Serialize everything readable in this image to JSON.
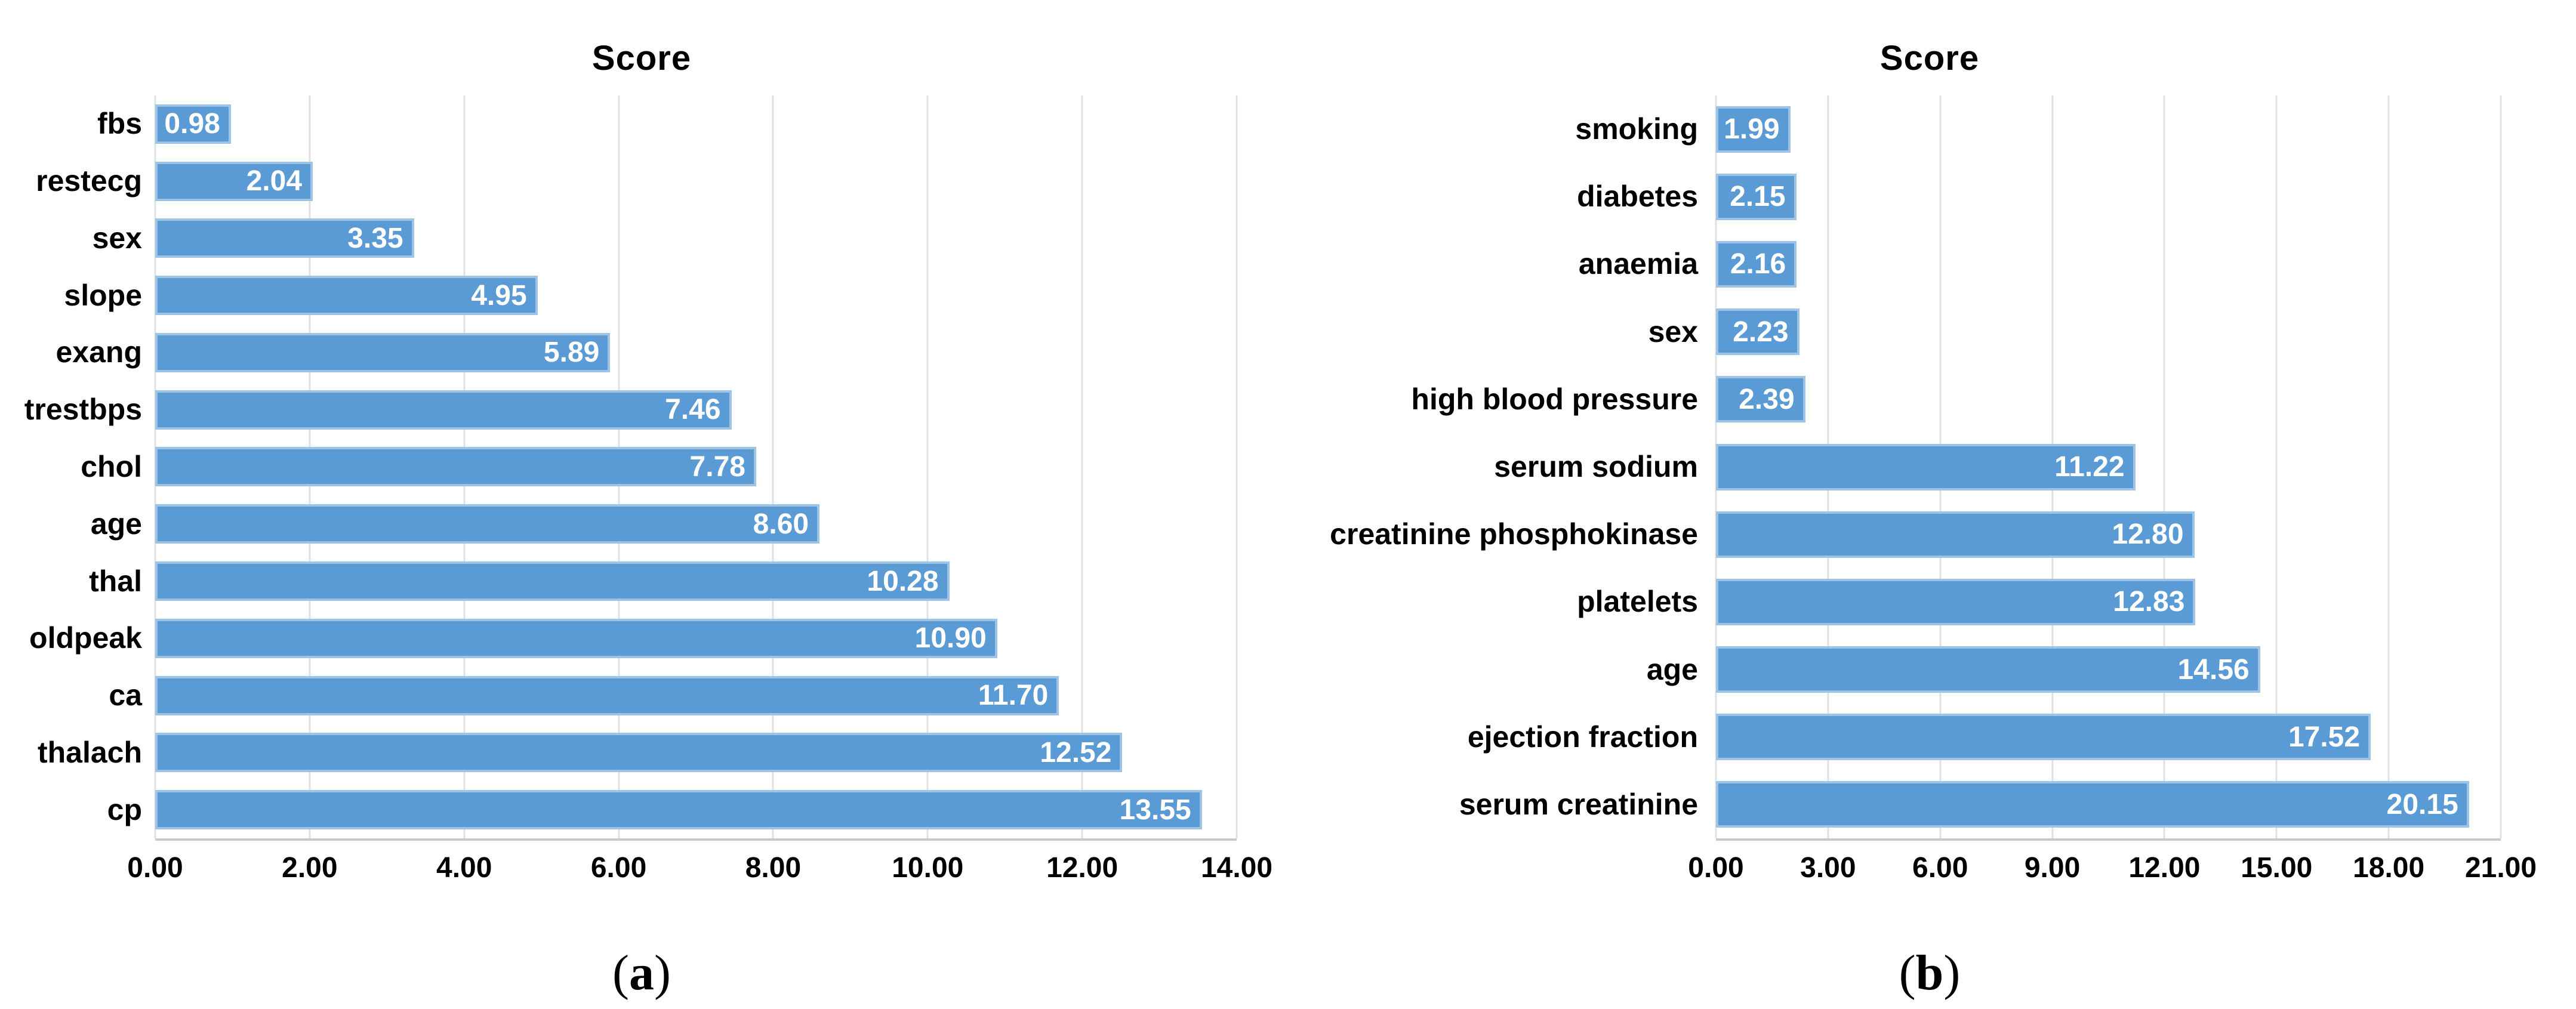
{
  "figure": {
    "captions": [
      {
        "open": "(",
        "letter": "a",
        "close": ")"
      },
      {
        "open": "(",
        "letter": "b",
        "close": ")"
      }
    ]
  },
  "chart_data": [
    {
      "type": "bar",
      "orientation": "horizontal",
      "title": "Score",
      "caption": "(a)",
      "categories": [
        "fbs",
        "restecg",
        "sex",
        "slope",
        "exang",
        "trestbps",
        "chol",
        "age",
        "thal",
        "oldpeak",
        "ca",
        "thalach",
        "cp"
      ],
      "values": [
        0.98,
        2.04,
        3.35,
        4.95,
        5.89,
        7.46,
        7.78,
        8.6,
        10.28,
        10.9,
        11.7,
        12.52,
        13.55
      ],
      "value_labels": [
        "0.98",
        "2.04",
        "3.35",
        "4.95",
        "5.89",
        "7.46",
        "7.78",
        "8.60",
        "10.28",
        "10.90",
        "11.70",
        "12.52",
        "13.55"
      ],
      "xlim": [
        0,
        14
      ],
      "xticks": [
        "0.00",
        "2.00",
        "4.00",
        "6.00",
        "8.00",
        "10.00",
        "12.00",
        "14.00"
      ],
      "xlabel": "",
      "ylabel": "",
      "grid": true,
      "legend": null,
      "bar_color": "#5b9bd5",
      "bar_border_color": "#9dc3e6",
      "value_label_color": "#ffffff"
    },
    {
      "type": "bar",
      "orientation": "horizontal",
      "title": "Score",
      "caption": "(b)",
      "categories": [
        "smoking",
        "diabetes",
        "anaemia",
        "sex",
        "high blood pressure",
        "serum sodium",
        "creatinine phosphokinase",
        "platelets",
        "age",
        "ejection fraction",
        "serum creatinine"
      ],
      "values": [
        1.99,
        2.15,
        2.16,
        2.23,
        2.39,
        11.22,
        12.8,
        12.83,
        14.56,
        17.52,
        20.15
      ],
      "value_labels": [
        "1.99",
        "2.15",
        "2.16",
        "2.23",
        "2.39",
        "11.22",
        "12.80",
        "12.83",
        "14.56",
        "17.52",
        "20.15"
      ],
      "xlim": [
        0,
        21
      ],
      "xticks": [
        "0.00",
        "3.00",
        "6.00",
        "9.00",
        "12.00",
        "15.00",
        "18.00",
        "21.00"
      ],
      "xlabel": "",
      "ylabel": "",
      "grid": true,
      "legend": null,
      "bar_color": "#5b9bd5",
      "bar_border_color": "#9dc3e6",
      "value_label_color": "#ffffff"
    }
  ]
}
